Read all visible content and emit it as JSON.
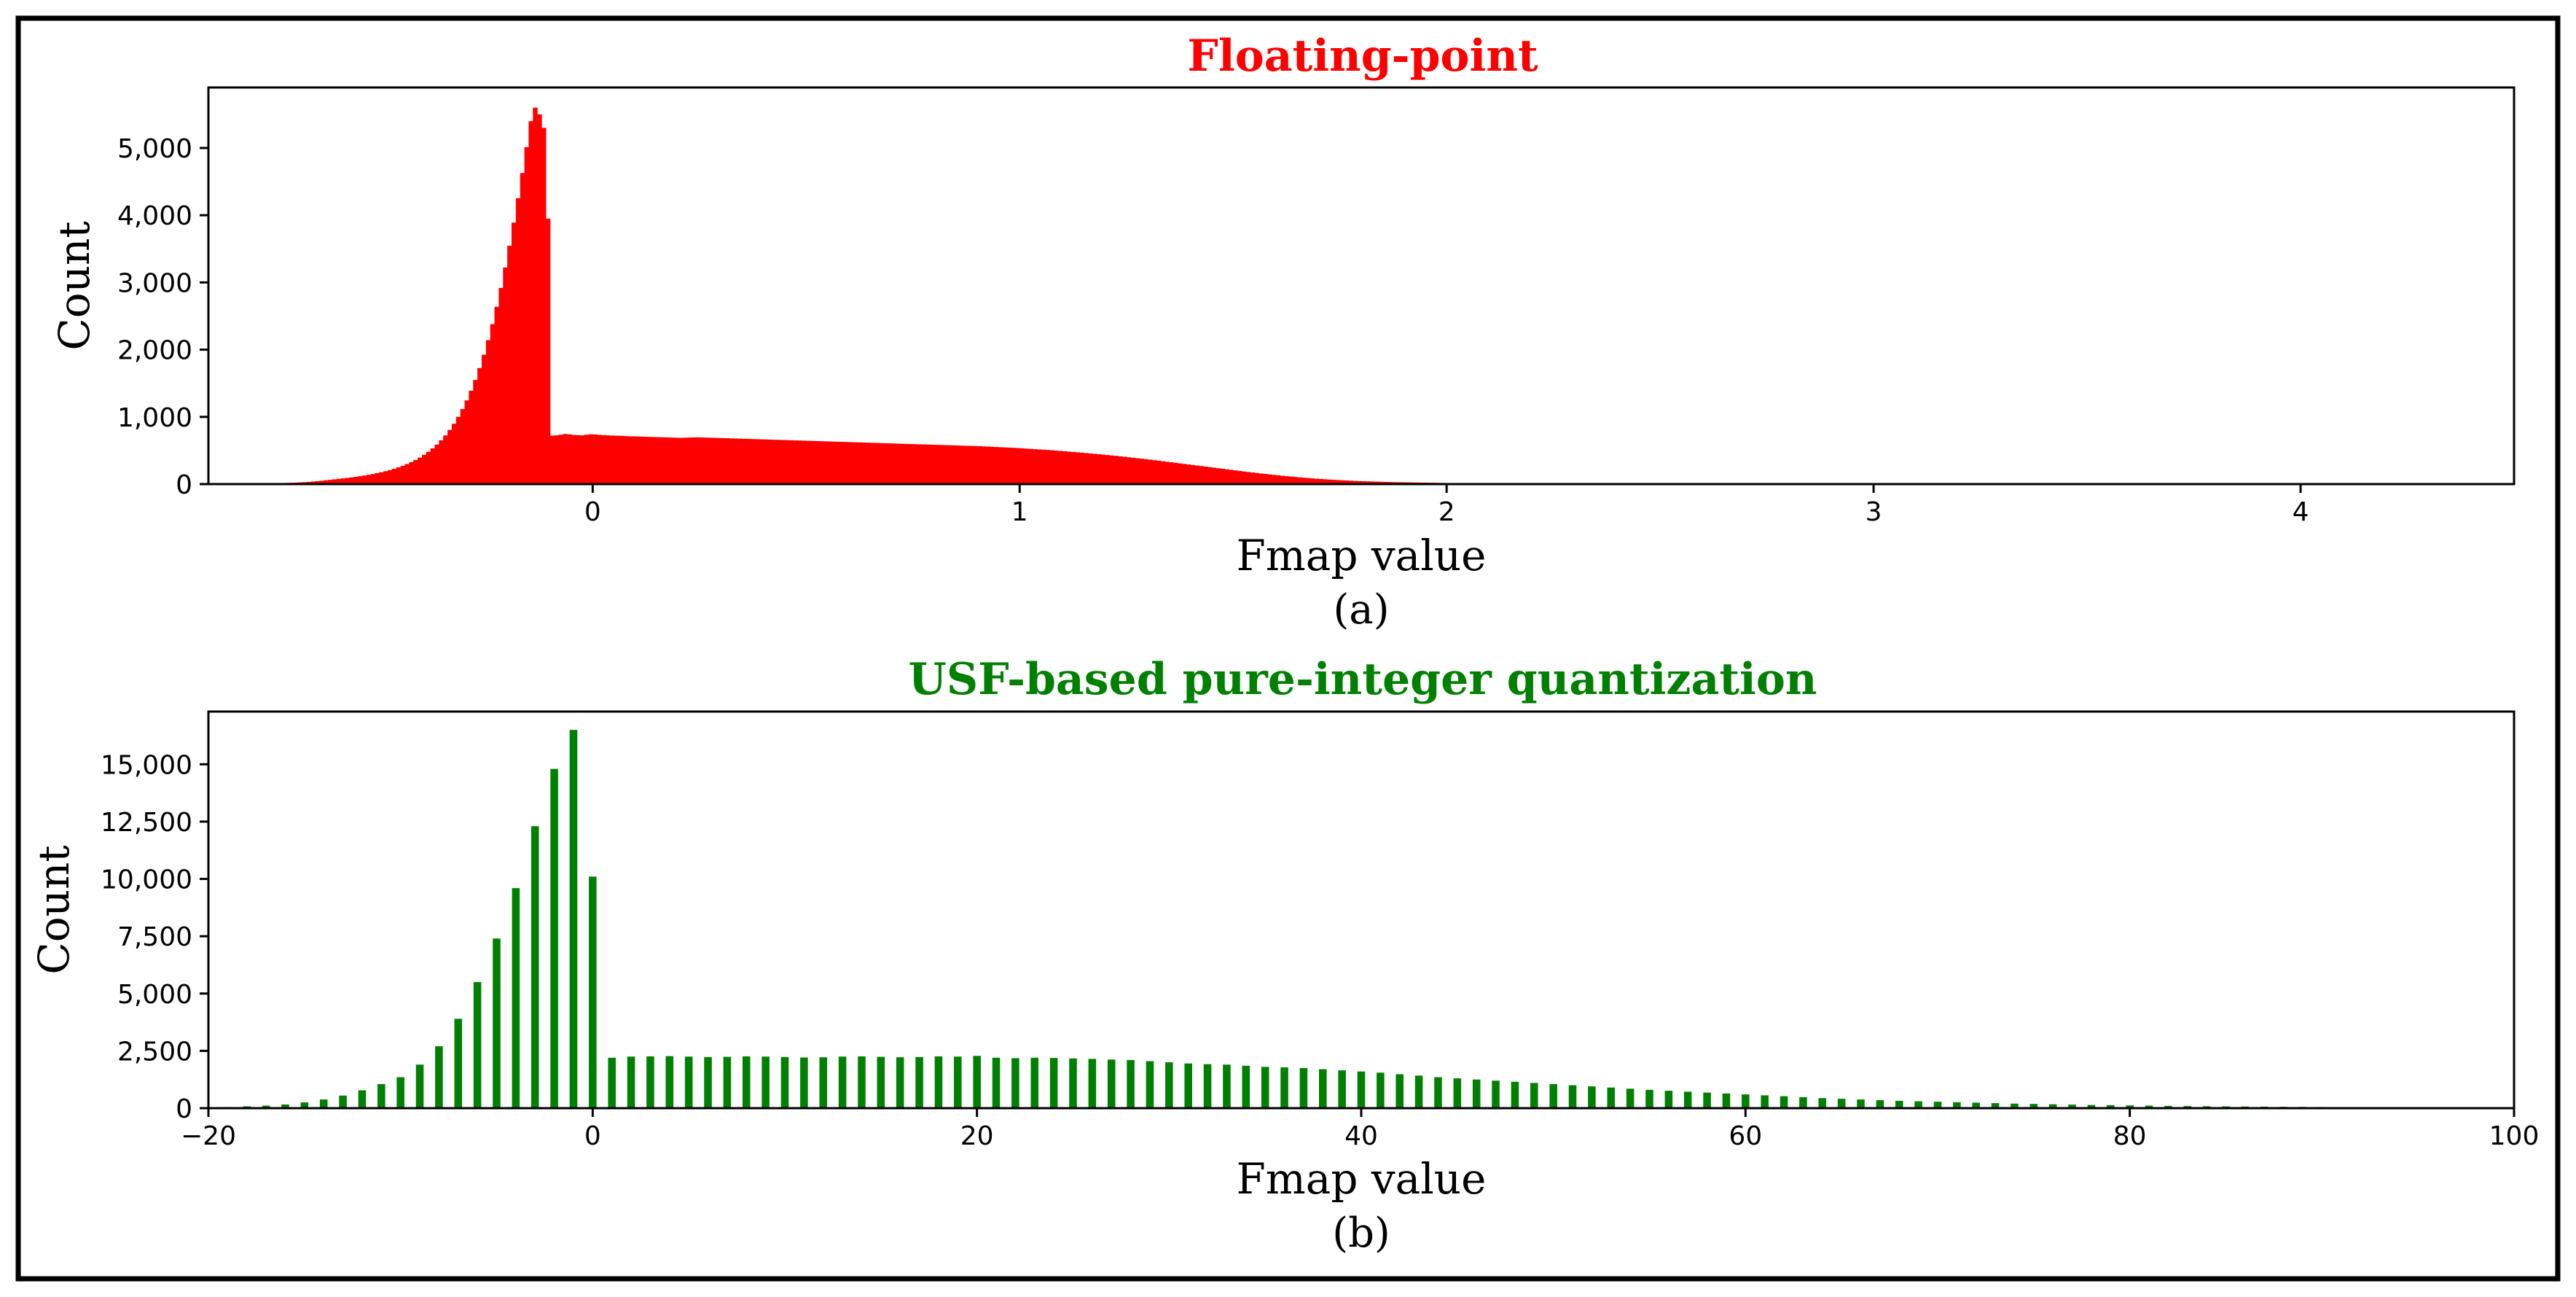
{
  "chart_data": [
    {
      "type": "bar",
      "title": "Floating-point",
      "title_color": "#ff0000",
      "bar_color": "#ff0000",
      "xlabel": "Fmap value",
      "ylabel": "Count",
      "caption": "(a)",
      "xlim": [
        -0.9,
        4.5
      ],
      "ylim": [
        0,
        5900
      ],
      "xticks": [
        0,
        1,
        2,
        3,
        4
      ],
      "xtick_labels": [
        "0",
        "1",
        "2",
        "3",
        "4"
      ],
      "yticks": [
        0,
        1000,
        2000,
        3000,
        4000,
        5000
      ],
      "ytick_labels": [
        "0",
        "1,000",
        "2,000",
        "3,000",
        "4,000",
        "5,000"
      ],
      "histogram": {
        "bin_start": -0.8,
        "bin_width": 0.01,
        "counts": [
          10,
          11,
          11,
          12,
          13,
          14,
          15,
          16,
          18,
          20,
          22,
          25,
          29,
          33,
          38,
          44,
          50,
          57,
          64,
          71,
          78,
          85,
          92,
          100,
          108,
          117,
          127,
          138,
          150,
          163,
          177,
          192,
          209,
          228,
          249,
          272,
          298,
          327,
          359,
          395,
          435,
          480,
          531,
          588,
          652,
          724,
          806,
          898,
          1001,
          1116,
          1245,
          1389,
          1549,
          1727,
          1924,
          2141,
          2379,
          2638,
          2919,
          3222,
          3546,
          3890,
          4252,
          4628,
          5013,
          5399,
          5600,
          5500,
          5300,
          3950,
          720,
          725,
          735,
          745,
          740,
          730,
          728,
          725,
          735,
          740,
          738,
          732,
          728,
          725,
          722,
          720,
          718,
          715,
          712,
          710,
          708,
          706,
          704,
          702,
          700,
          698,
          696,
          694,
          692,
          690,
          688,
          690,
          692,
          694,
          696,
          694,
          692,
          690,
          688,
          686,
          684,
          682,
          680,
          678,
          676,
          674,
          672,
          670,
          668,
          666,
          664,
          662,
          660,
          658,
          656,
          654,
          652,
          650,
          648,
          646,
          644,
          642,
          640,
          638,
          636,
          634,
          632,
          630,
          628,
          626,
          624,
          622,
          620,
          618,
          616,
          614,
          612,
          610,
          608,
          606,
          604,
          602,
          600,
          598,
          596,
          594,
          592,
          590,
          588,
          586,
          584,
          582,
          580,
          578,
          576,
          574,
          572,
          570,
          568,
          566,
          564,
          561,
          558,
          555,
          552,
          549,
          546,
          543,
          540,
          536,
          532,
          528,
          524,
          520,
          516,
          512,
          508,
          503,
          498,
          493,
          488,
          483,
          478,
          473,
          468,
          462,
          456,
          450,
          444,
          438,
          432,
          426,
          420,
          413,
          406,
          399,
          392,
          385,
          378,
          371,
          364,
          356,
          348,
          340,
          332,
          324,
          316,
          308,
          300,
          292,
          284,
          276,
          268,
          260,
          252,
          244,
          236,
          228,
          220,
          212,
          204,
          196,
          188,
          180,
          172,
          165,
          158,
          151,
          144,
          137,
          130,
          124,
          118,
          112,
          106,
          100,
          95,
          90,
          85,
          80,
          76,
          72,
          68,
          64,
          60,
          57,
          54,
          51,
          48,
          45,
          43,
          41,
          39,
          37,
          35,
          33,
          31,
          29,
          28,
          27,
          26,
          25,
          24,
          23,
          22,
          21,
          20,
          19,
          18,
          17,
          16,
          15,
          14,
          14,
          13,
          13,
          12,
          12,
          11,
          11,
          10,
          10,
          9,
          9,
          9,
          8,
          8,
          8,
          7,
          7,
          7,
          6,
          6,
          6,
          6,
          5,
          5,
          5,
          5,
          5,
          4,
          4,
          4,
          4,
          4,
          4,
          3,
          3,
          3,
          3,
          3,
          3,
          3,
          3,
          3,
          3,
          3,
          3,
          3,
          3,
          3,
          3,
          3,
          3,
          3,
          3,
          3,
          3,
          3,
          3,
          3,
          3,
          3,
          3,
          3,
          3,
          3,
          3,
          3,
          3,
          3,
          3,
          3,
          3,
          3,
          3,
          3,
          3,
          3,
          3,
          3,
          3,
          3,
          3,
          3,
          3,
          3,
          3,
          3,
          3,
          3,
          3,
          3,
          3,
          3,
          3,
          3,
          3,
          3,
          3,
          3,
          3,
          3,
          3,
          3,
          3,
          3,
          3,
          3,
          3,
          3,
          3,
          3,
          3,
          3,
          3,
          3,
          3,
          3,
          3,
          3,
          3,
          3,
          3,
          3,
          3,
          3,
          3,
          3,
          3,
          3,
          3,
          3,
          3,
          3,
          3,
          3,
          3,
          3,
          3,
          3,
          3,
          3,
          3,
          3,
          3,
          3,
          3,
          3,
          3,
          3,
          3,
          3,
          3,
          3,
          3,
          3,
          3,
          3,
          3,
          3,
          3,
          3,
          3,
          3,
          3,
          3,
          3,
          3,
          3,
          3,
          3,
          3,
          3,
          3,
          3,
          3,
          3,
          3,
          3,
          3,
          3,
          3,
          3,
          3,
          3,
          3,
          3,
          3,
          3,
          3,
          3,
          3,
          3,
          3,
          3,
          3,
          3,
          3,
          3,
          3,
          3,
          3,
          3,
          3,
          3
        ]
      }
    },
    {
      "type": "bar",
      "title": "USF-based pure-integer quantization",
      "title_color": "#008000",
      "bar_color": "#008000",
      "xlabel": "Fmap value",
      "ylabel": "Count",
      "caption": "(b)",
      "xlim": [
        -20,
        100
      ],
      "ylim": [
        0,
        17300
      ],
      "xticks": [
        -20,
        0,
        20,
        40,
        60,
        80,
        100
      ],
      "xtick_labels": [
        "−20",
        "0",
        "20",
        "40",
        "60",
        "80",
        "100"
      ],
      "yticks": [
        0,
        2500,
        5000,
        7500,
        10000,
        12500,
        15000
      ],
      "ytick_labels": [
        "0",
        "2,500",
        "5,000",
        "7,500",
        "10,000",
        "12,500",
        "15,000"
      ],
      "x": [
        -19,
        -18,
        -17,
        -16,
        -15,
        -14,
        -13,
        -12,
        -11,
        -10,
        -9,
        -8,
        -7,
        -6,
        -5,
        -4,
        -3,
        -2,
        -1,
        0,
        1,
        2,
        3,
        4,
        5,
        6,
        7,
        8,
        9,
        10,
        11,
        12,
        13,
        14,
        15,
        16,
        17,
        18,
        19,
        20,
        21,
        22,
        23,
        24,
        25,
        26,
        27,
        28,
        29,
        30,
        31,
        32,
        33,
        34,
        35,
        36,
        37,
        38,
        39,
        40,
        41,
        42,
        43,
        44,
        45,
        46,
        47,
        48,
        49,
        50,
        51,
        52,
        53,
        54,
        55,
        56,
        57,
        58,
        59,
        60,
        61,
        62,
        63,
        64,
        65,
        66,
        67,
        68,
        69,
        70,
        71,
        72,
        73,
        74,
        75,
        76,
        77,
        78,
        79,
        80,
        81,
        82,
        83,
        84,
        85,
        86,
        87,
        88,
        89,
        90,
        91,
        92,
        93,
        94,
        95,
        96
      ],
      "values": [
        50,
        80,
        110,
        160,
        250,
        380,
        550,
        780,
        1050,
        1350,
        1900,
        2700,
        3900,
        5500,
        7400,
        9600,
        12300,
        14800,
        16500,
        10100,
        2200,
        2250,
        2260,
        2270,
        2250,
        2230,
        2240,
        2260,
        2250,
        2230,
        2210,
        2220,
        2250,
        2260,
        2240,
        2220,
        2230,
        2260,
        2250,
        2280,
        2200,
        2180,
        2200,
        2190,
        2170,
        2150,
        2120,
        2100,
        2050,
        2000,
        1950,
        1920,
        1900,
        1850,
        1800,
        1780,
        1750,
        1700,
        1650,
        1600,
        1550,
        1480,
        1420,
        1350,
        1300,
        1250,
        1200,
        1150,
        1100,
        1050,
        1000,
        950,
        900,
        850,
        800,
        760,
        720,
        680,
        640,
        600,
        560,
        520,
        480,
        440,
        410,
        380,
        350,
        320,
        300,
        280,
        260,
        240,
        220,
        200,
        185,
        170,
        155,
        140,
        130,
        120,
        110,
        100,
        92,
        85,
        78,
        72,
        66,
        60,
        55,
        50,
        45,
        40,
        35,
        30,
        25,
        20
      ]
    }
  ]
}
